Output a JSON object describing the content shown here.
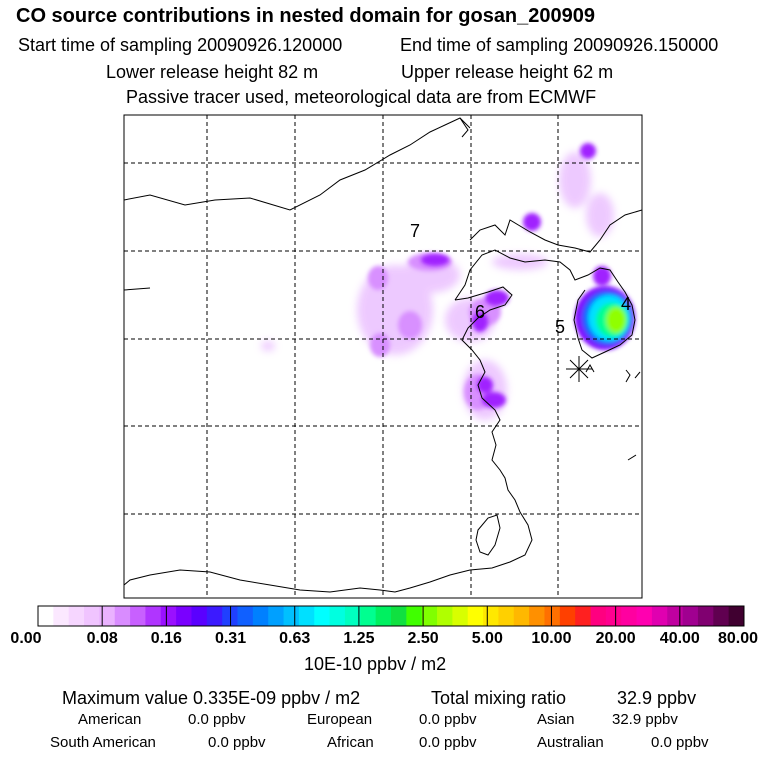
{
  "header": {
    "title": "CO  source contributions in nested domain for gosan_200909",
    "start_time": "Start time of sampling 20090926.120000",
    "end_time": "End time of sampling 20090926.150000",
    "lower_release": "Lower release height   82 m",
    "upper_release": "Upper release height   62 m",
    "tracer_info": "Passive tracer used, meteorological data are from ECMWF"
  },
  "map": {
    "region_labels": [
      "7",
      "6",
      "5",
      "4"
    ]
  },
  "colorbar": {
    "colors": [
      "#ffffff",
      "#fbe8ff",
      "#f6d6ff",
      "#f0c4ff",
      "#eab2ff",
      "#d98cff",
      "#c860ff",
      "#b035ff",
      "#9a10ff",
      "#7a00ff",
      "#5a00ff",
      "#3c1aff",
      "#2040ff",
      "#1060ff",
      "#0080ff",
      "#00a0ff",
      "#00c0ff",
      "#00e0ff",
      "#00ffff",
      "#00ffe0",
      "#00ffc0",
      "#00ff90",
      "#00f060",
      "#10e040",
      "#40ff00",
      "#80ff00",
      "#b0ff00",
      "#d8ff00",
      "#ffff00",
      "#ffe800",
      "#ffd000",
      "#ffb800",
      "#ff9000",
      "#ff7000",
      "#ff4000",
      "#ff2020",
      "#ff0080",
      "#ff0090",
      "#ff00a0",
      "#ff00b0",
      "#e000b0",
      "#c000a0",
      "#a00090",
      "#800070",
      "#600050",
      "#400030"
    ],
    "tick_labels": [
      "0.00",
      "0.08",
      "0.16",
      "0.31",
      "0.63",
      "1.25",
      "2.50",
      "5.00",
      "10.00",
      "20.00",
      "40.00",
      "80.00"
    ],
    "units": "10E-10 ppbv / m2"
  },
  "stats": {
    "max_value": "Maximum value  0.335E-09 ppbv / m2",
    "total_mixing": "Total mixing ratio",
    "total_mixing_value": "32.9 ppbv",
    "american_label": "American",
    "american_value": "0.0 ppbv",
    "european_label": "European",
    "european_value": "0.0 ppbv",
    "asian_label": "Asian",
    "asian_value": "32.9 ppbv",
    "south_american_label": "South American",
    "south_american_value": "0.0 ppbv",
    "african_label": "African",
    "african_value": "0.0 ppbv",
    "australian_label": "Australian",
    "australian_value": "0.0 ppbv"
  }
}
